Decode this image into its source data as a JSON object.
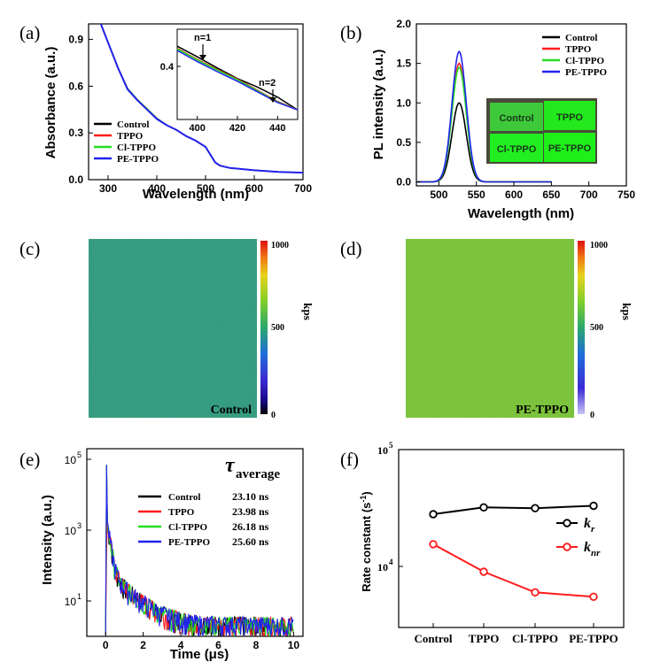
{
  "panels": {
    "a": "(a)",
    "b": "(b)",
    "c": "(c)",
    "d": "(d)",
    "e": "(e)",
    "f": "(f)"
  },
  "colors": {
    "control": "#000000",
    "tppo": "#ff1a1a",
    "cl_tppo": "#22dd22",
    "pe_tppo": "#2222ee"
  },
  "chart_data": [
    {
      "id": "a",
      "type": "line",
      "xlabel": "Wavelength (nm)",
      "ylabel": "Absorbance (a.u.)",
      "xlim": [
        260,
        700
      ],
      "ylim": [
        0,
        1.0
      ],
      "xticks": [
        "300",
        "400",
        "500",
        "600",
        "700"
      ],
      "yticks": [
        "0.0",
        "0.3",
        "0.6",
        "0.9"
      ],
      "legend_position": "bottom-left",
      "x": [
        285,
        300,
        320,
        340,
        360,
        380,
        400,
        420,
        440,
        460,
        480,
        500,
        510,
        520,
        530,
        550,
        600,
        650,
        700
      ],
      "series": [
        {
          "name": "Control",
          "values": [
            1.0,
            0.88,
            0.72,
            0.58,
            0.51,
            0.45,
            0.39,
            0.35,
            0.32,
            0.28,
            0.25,
            0.21,
            0.16,
            0.11,
            0.09,
            0.075,
            0.06,
            0.05,
            0.045
          ]
        },
        {
          "name": "TPPO",
          "values": [
            1.0,
            0.88,
            0.72,
            0.585,
            0.515,
            0.455,
            0.395,
            0.35,
            0.32,
            0.28,
            0.25,
            0.21,
            0.16,
            0.11,
            0.09,
            0.075,
            0.06,
            0.05,
            0.045
          ]
        },
        {
          "name": "Cl-TPPO",
          "values": [
            1.0,
            0.88,
            0.72,
            0.585,
            0.515,
            0.455,
            0.395,
            0.35,
            0.32,
            0.28,
            0.25,
            0.21,
            0.16,
            0.11,
            0.09,
            0.075,
            0.06,
            0.05,
            0.045
          ]
        },
        {
          "name": "PE-TPPO",
          "values": [
            1.0,
            0.88,
            0.72,
            0.58,
            0.51,
            0.45,
            0.39,
            0.35,
            0.32,
            0.28,
            0.25,
            0.21,
            0.16,
            0.11,
            0.09,
            0.075,
            0.06,
            0.05,
            0.045
          ]
        }
      ],
      "inset": {
        "xlim": [
          390,
          450
        ],
        "ylim": [
          0.3,
          0.47
        ],
        "xticks": [
          "400",
          "420",
          "440"
        ],
        "yticks": [
          "0.4"
        ],
        "annotations": [
          "n=1",
          "n=2"
        ],
        "x": [
          390,
          400,
          410,
          420,
          430,
          440,
          450
        ],
        "series": [
          {
            "name": "Control",
            "values": [
              0.438,
              0.418,
              0.397,
              0.377,
              0.361,
              0.342,
              0.318
            ]
          },
          {
            "name": "TPPO",
            "values": [
              0.434,
              0.413,
              0.394,
              0.376,
              0.355,
              0.334,
              0.318
            ]
          },
          {
            "name": "Cl-TPPO",
            "values": [
              0.433,
              0.412,
              0.393,
              0.375,
              0.354,
              0.333,
              0.318
            ]
          },
          {
            "name": "PE-TPPO",
            "values": [
              0.43,
              0.409,
              0.39,
              0.372,
              0.352,
              0.332,
              0.318
            ]
          }
        ]
      }
    },
    {
      "id": "b",
      "type": "line",
      "xlabel": "Wavelength (nm)",
      "ylabel": "PL intensity (a.u.)",
      "xlim": [
        470,
        750
      ],
      "ylim": [
        -0.05,
        2.0
      ],
      "xticks": [
        "500",
        "550",
        "600",
        "650",
        "700",
        "750"
      ],
      "yticks": [
        "0.0",
        "0.5",
        "1.0",
        "1.5",
        "2.0"
      ],
      "legend_position": "top-right",
      "peak_center": 527,
      "series": [
        {
          "name": "Control",
          "peak": 1.0
        },
        {
          "name": "TPPO",
          "peak": 1.5
        },
        {
          "name": "Cl-TPPO",
          "peak": 1.45
        },
        {
          "name": "PE-TPPO",
          "peak": 1.65
        }
      ],
      "x_range_plotted": [
        470,
        650
      ],
      "inset_labels": [
        "Control",
        "TPPO",
        "Cl-TPPO",
        "PE-TPPO"
      ]
    },
    {
      "id": "c",
      "type": "heatmap",
      "label": "Control",
      "colorbar_ticks": [
        "1000",
        "500",
        "0"
      ],
      "colorbar_label": "kps",
      "approx_level": 400
    },
    {
      "id": "d",
      "type": "heatmap",
      "label": "PE-TPPO",
      "colorbar_ticks": [
        "1000",
        "500",
        "0"
      ],
      "colorbar_label": "kps",
      "approx_level": 520
    },
    {
      "id": "e",
      "type": "line",
      "xlabel": "Time (μs)",
      "ylabel": "Intensity (a.u.)",
      "xlim": [
        -1,
        10.5
      ],
      "ylim_log": [
        1,
        100000
      ],
      "xticks": [
        "0",
        "2",
        "4",
        "6",
        "8",
        "10"
      ],
      "yticks": [
        "10",
        "10",
        "10"
      ],
      "ytick_exponents": [
        "1",
        "3",
        "5"
      ],
      "legend_position": "center",
      "tau_header": "τ",
      "tau_subscript": "average",
      "series": [
        {
          "name": "Control",
          "tau": "23.10 ns"
        },
        {
          "name": "TPPO",
          "tau": "23.98 ns"
        },
        {
          "name": "Cl-TPPO",
          "tau": "26.18 ns"
        },
        {
          "name": "PE-TPPO",
          "tau": "25.60 ns"
        }
      ]
    },
    {
      "id": "f",
      "type": "line",
      "ylabel": "Rate constant (s",
      "ylabel_sup": "-1",
      "ylabel_end": ")",
      "ylim_log": [
        3000,
        100000
      ],
      "yticks": [
        "10",
        "10"
      ],
      "ytick_exponents": [
        "4",
        "5"
      ],
      "categories": [
        "Control",
        "TPPO",
        "Cl-TPPO",
        "PE-TPPO"
      ],
      "legend_position": "right",
      "series": [
        {
          "name": "k",
          "sub": "r",
          "values": [
            28000,
            32000,
            31500,
            33000
          ]
        },
        {
          "name": "k",
          "sub": "nr",
          "values": [
            15500,
            9000,
            6000,
            5500
          ]
        }
      ]
    }
  ]
}
